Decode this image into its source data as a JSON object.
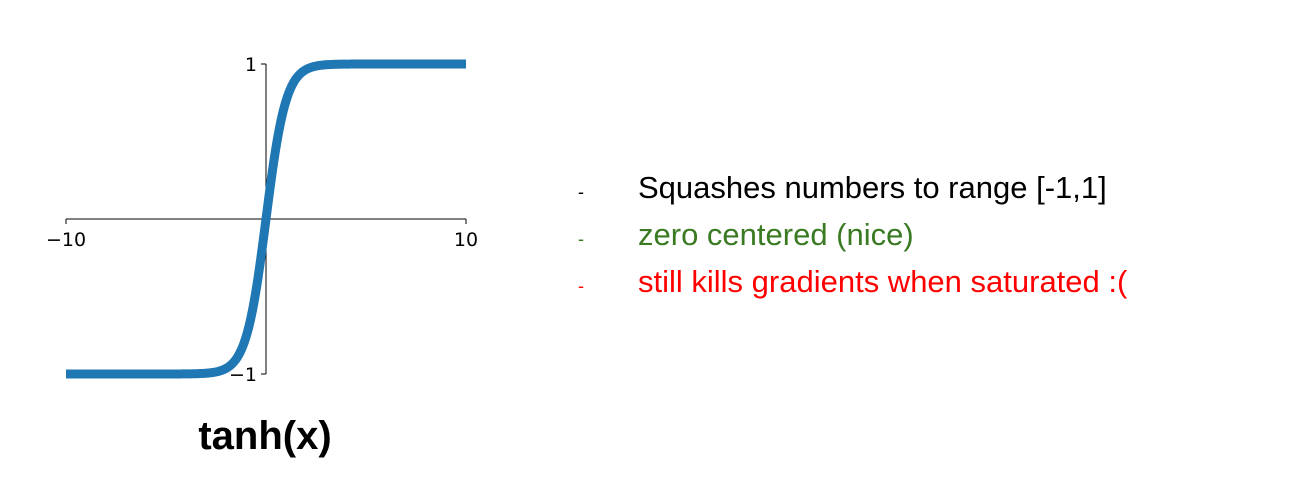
{
  "chart_data": {
    "type": "line",
    "function": "tanh",
    "xlim": [
      -10,
      10
    ],
    "ylim": [
      -1,
      1
    ],
    "x_ticks": [
      -10,
      10
    ],
    "x_tick_labels": [
      "−10",
      "10"
    ],
    "y_ticks": [
      1,
      -1
    ],
    "y_tick_labels": [
      "1",
      "−1"
    ],
    "series_color": "#1f77b4",
    "x": [
      -10,
      -8,
      -6,
      -4,
      -3,
      -2.5,
      -2,
      -1.5,
      -1,
      -0.5,
      0,
      0.5,
      1,
      1.5,
      2,
      2.5,
      3,
      4,
      6,
      8,
      10
    ],
    "y": [
      -1.0,
      -1.0,
      -1.0,
      -0.999,
      -0.995,
      -0.987,
      -0.964,
      -0.905,
      -0.762,
      -0.462,
      0.0,
      0.462,
      0.762,
      0.905,
      0.964,
      0.987,
      0.995,
      0.999,
      1.0,
      1.0,
      1.0
    ],
    "caption": "tanh(x)"
  },
  "bullets": [
    {
      "dash": "-",
      "text": "Squashes numbers to range [-1,1]",
      "color": "#000000"
    },
    {
      "dash": "-",
      "text": "zero centered (nice)",
      "color": "#3a7a23"
    },
    {
      "dash": "-",
      "text": "still kills gradients when saturated :(",
      "color": "#ff0000"
    }
  ]
}
